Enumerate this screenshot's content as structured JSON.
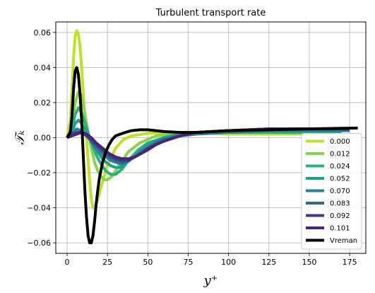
{
  "chart_data": {
    "type": "line",
    "title": "Turbulent transport rate",
    "xlabel": "y⁺",
    "ylabel": "𝒯ₖ",
    "xlim": [
      -7,
      185
    ],
    "ylim": [
      -0.066,
      0.066
    ],
    "x_ticks": [
      0,
      25,
      50,
      75,
      100,
      125,
      150,
      175
    ],
    "y_ticks": [
      -0.06,
      -0.04,
      -0.02,
      0.0,
      0.02,
      0.04,
      0.06
    ],
    "x_tick_labels": [
      "0",
      "25",
      "50",
      "75",
      "100",
      "125",
      "150",
      "175"
    ],
    "y_tick_labels": [
      "−0.06",
      "−0.04",
      "−0.02",
      "0.00",
      "0.02",
      "0.04",
      "0.06"
    ],
    "grid": true,
    "legend_position": "lower-right",
    "series": [
      {
        "name": "0.000",
        "color": "#c2df23",
        "width": 4,
        "x": [
          0,
          2,
          4,
          5,
          6,
          7,
          8,
          9,
          10,
          11,
          12,
          13,
          14,
          15,
          16,
          17,
          18,
          20,
          22,
          25,
          30,
          35,
          40,
          50,
          60,
          75,
          100,
          125,
          150,
          165
        ],
        "y": [
          0,
          0.01,
          0.045,
          0.058,
          0.061,
          0.059,
          0.052,
          0.04,
          0.026,
          0.012,
          0,
          -0.012,
          -0.025,
          -0.035,
          -0.04,
          -0.04,
          -0.038,
          -0.032,
          -0.025,
          -0.016,
          -0.006,
          -0.001,
          0.001,
          0.0025,
          0.003,
          0.003,
          0.002,
          0.002,
          0.002,
          0.002
        ]
      },
      {
        "name": "0.012",
        "color": "#86d549",
        "width": 4,
        "x": [
          0,
          3,
          5,
          7,
          9,
          11,
          13,
          15,
          17,
          19,
          21,
          23,
          25,
          28,
          32,
          38,
          45,
          55,
          65,
          75,
          100,
          125,
          150,
          168
        ],
        "y": [
          0,
          0.006,
          0.02,
          0.026,
          0.024,
          0.014,
          0.003,
          -0.006,
          -0.014,
          -0.019,
          -0.022,
          -0.024,
          -0.024,
          -0.022,
          -0.016,
          -0.008,
          -0.003,
          0.001,
          0.002,
          0.003,
          0.003,
          0.003,
          0.003,
          0.003
        ]
      },
      {
        "name": "0.024",
        "color": "#2ab07f",
        "width": 4,
        "x": [
          0,
          3,
          5,
          7,
          9,
          12,
          15,
          18,
          21,
          24,
          27,
          30,
          34,
          38,
          44,
          50,
          60,
          70,
          80,
          100,
          125,
          150,
          170
        ],
        "y": [
          0,
          0.005,
          0.013,
          0.017,
          0.014,
          0.006,
          -0.003,
          -0.01,
          -0.015,
          -0.019,
          -0.021,
          -0.021,
          -0.018,
          -0.013,
          -0.007,
          -0.003,
          0,
          0.002,
          0.003,
          0.003,
          0.003,
          0.003,
          0.003
        ]
      },
      {
        "name": "0.052",
        "color": "#1f9e89",
        "width": 4,
        "x": [
          0,
          3,
          5,
          7,
          9,
          12,
          15,
          18,
          21,
          24,
          27,
          30,
          33,
          36,
          40,
          45,
          50,
          55,
          60,
          70,
          80,
          100,
          125,
          150,
          172
        ],
        "y": [
          0,
          0.003,
          0.008,
          0.01,
          0.008,
          0.003,
          -0.002,
          -0.007,
          -0.011,
          -0.014,
          -0.016,
          -0.017,
          -0.017,
          -0.015,
          -0.012,
          -0.008,
          -0.004,
          -0.002,
          0,
          0.002,
          0.003,
          0.004,
          0.004,
          0.004,
          0.004
        ]
      },
      {
        "name": "0.070",
        "color": "#26828e",
        "width": 4,
        "x": [
          0,
          3,
          6,
          9,
          12,
          15,
          18,
          21,
          24,
          27,
          30,
          33,
          36,
          40,
          45,
          50,
          55,
          60,
          70,
          80,
          100,
          125,
          150,
          175
        ],
        "y": [
          0,
          0.002,
          0.005,
          0.004,
          0.001,
          -0.002,
          -0.006,
          -0.009,
          -0.011,
          -0.013,
          -0.014,
          -0.015,
          -0.014,
          -0.012,
          -0.009,
          -0.006,
          -0.003,
          -0.001,
          0.001,
          0.002,
          0.003,
          0.004,
          0.004,
          0.004
        ]
      },
      {
        "name": "0.083",
        "color": "#31688e",
        "width": 4,
        "x": [
          0,
          3,
          6,
          9,
          12,
          15,
          18,
          22,
          26,
          30,
          34,
          38,
          42,
          46,
          50,
          55,
          60,
          70,
          80,
          100,
          125,
          150,
          175
        ],
        "y": [
          0,
          0.002,
          0.003,
          0.003,
          0.001,
          -0.002,
          -0.005,
          -0.008,
          -0.011,
          -0.013,
          -0.014,
          -0.013,
          -0.011,
          -0.008,
          -0.006,
          -0.003,
          -0.001,
          0.001,
          0.003,
          0.004,
          0.005,
          0.005,
          0.005
        ]
      },
      {
        "name": "0.092",
        "color": "#443a83",
        "width": 4,
        "x": [
          0,
          3,
          6,
          9,
          12,
          15,
          18,
          22,
          26,
          30,
          34,
          38,
          42,
          46,
          50,
          55,
          60,
          70,
          80,
          100,
          125,
          150,
          175
        ],
        "y": [
          0,
          0.002,
          0.003,
          0.003,
          0.001,
          -0.001,
          -0.004,
          -0.007,
          -0.01,
          -0.012,
          -0.013,
          -0.013,
          -0.011,
          -0.009,
          -0.006,
          -0.004,
          -0.002,
          0.001,
          0.003,
          0.004,
          0.005,
          0.005,
          0.005
        ]
      },
      {
        "name": "0.101",
        "color": "#482677",
        "width": 4,
        "x": [
          0,
          3,
          6,
          9,
          12,
          15,
          18,
          22,
          26,
          30,
          34,
          38,
          42,
          46,
          50,
          55,
          60,
          70,
          80,
          100,
          125,
          150,
          175
        ],
        "y": [
          0,
          0.001,
          0.002,
          0.003,
          0.002,
          0,
          -0.003,
          -0.006,
          -0.009,
          -0.011,
          -0.012,
          -0.012,
          -0.011,
          -0.009,
          -0.007,
          -0.004,
          -0.002,
          0.001,
          0.003,
          0.004,
          0.005,
          0.005,
          0.005
        ]
      },
      {
        "name": "Vreman",
        "color": "#000000",
        "width": 4,
        "x": [
          0,
          2,
          3,
          4,
          5,
          6,
          7,
          8,
          9,
          10,
          11,
          12,
          13,
          14,
          15,
          16,
          17,
          18,
          19,
          20,
          22,
          24,
          26,
          28,
          30,
          33,
          36,
          40,
          45,
          50,
          55,
          60,
          70,
          80,
          100,
          125,
          150,
          180
        ],
        "y": [
          0,
          0.003,
          0.012,
          0.028,
          0.038,
          0.04,
          0.036,
          0.025,
          0.01,
          -0.01,
          -0.03,
          -0.045,
          -0.056,
          -0.06,
          -0.06,
          -0.056,
          -0.048,
          -0.038,
          -0.03,
          -0.023,
          -0.014,
          -0.008,
          -0.004,
          -0.001,
          0.001,
          0.002,
          0.003,
          0.004,
          0.0045,
          0.0045,
          0.004,
          0.0035,
          0.003,
          0.003,
          0.004,
          0.0045,
          0.005,
          0.0055
        ]
      }
    ]
  }
}
